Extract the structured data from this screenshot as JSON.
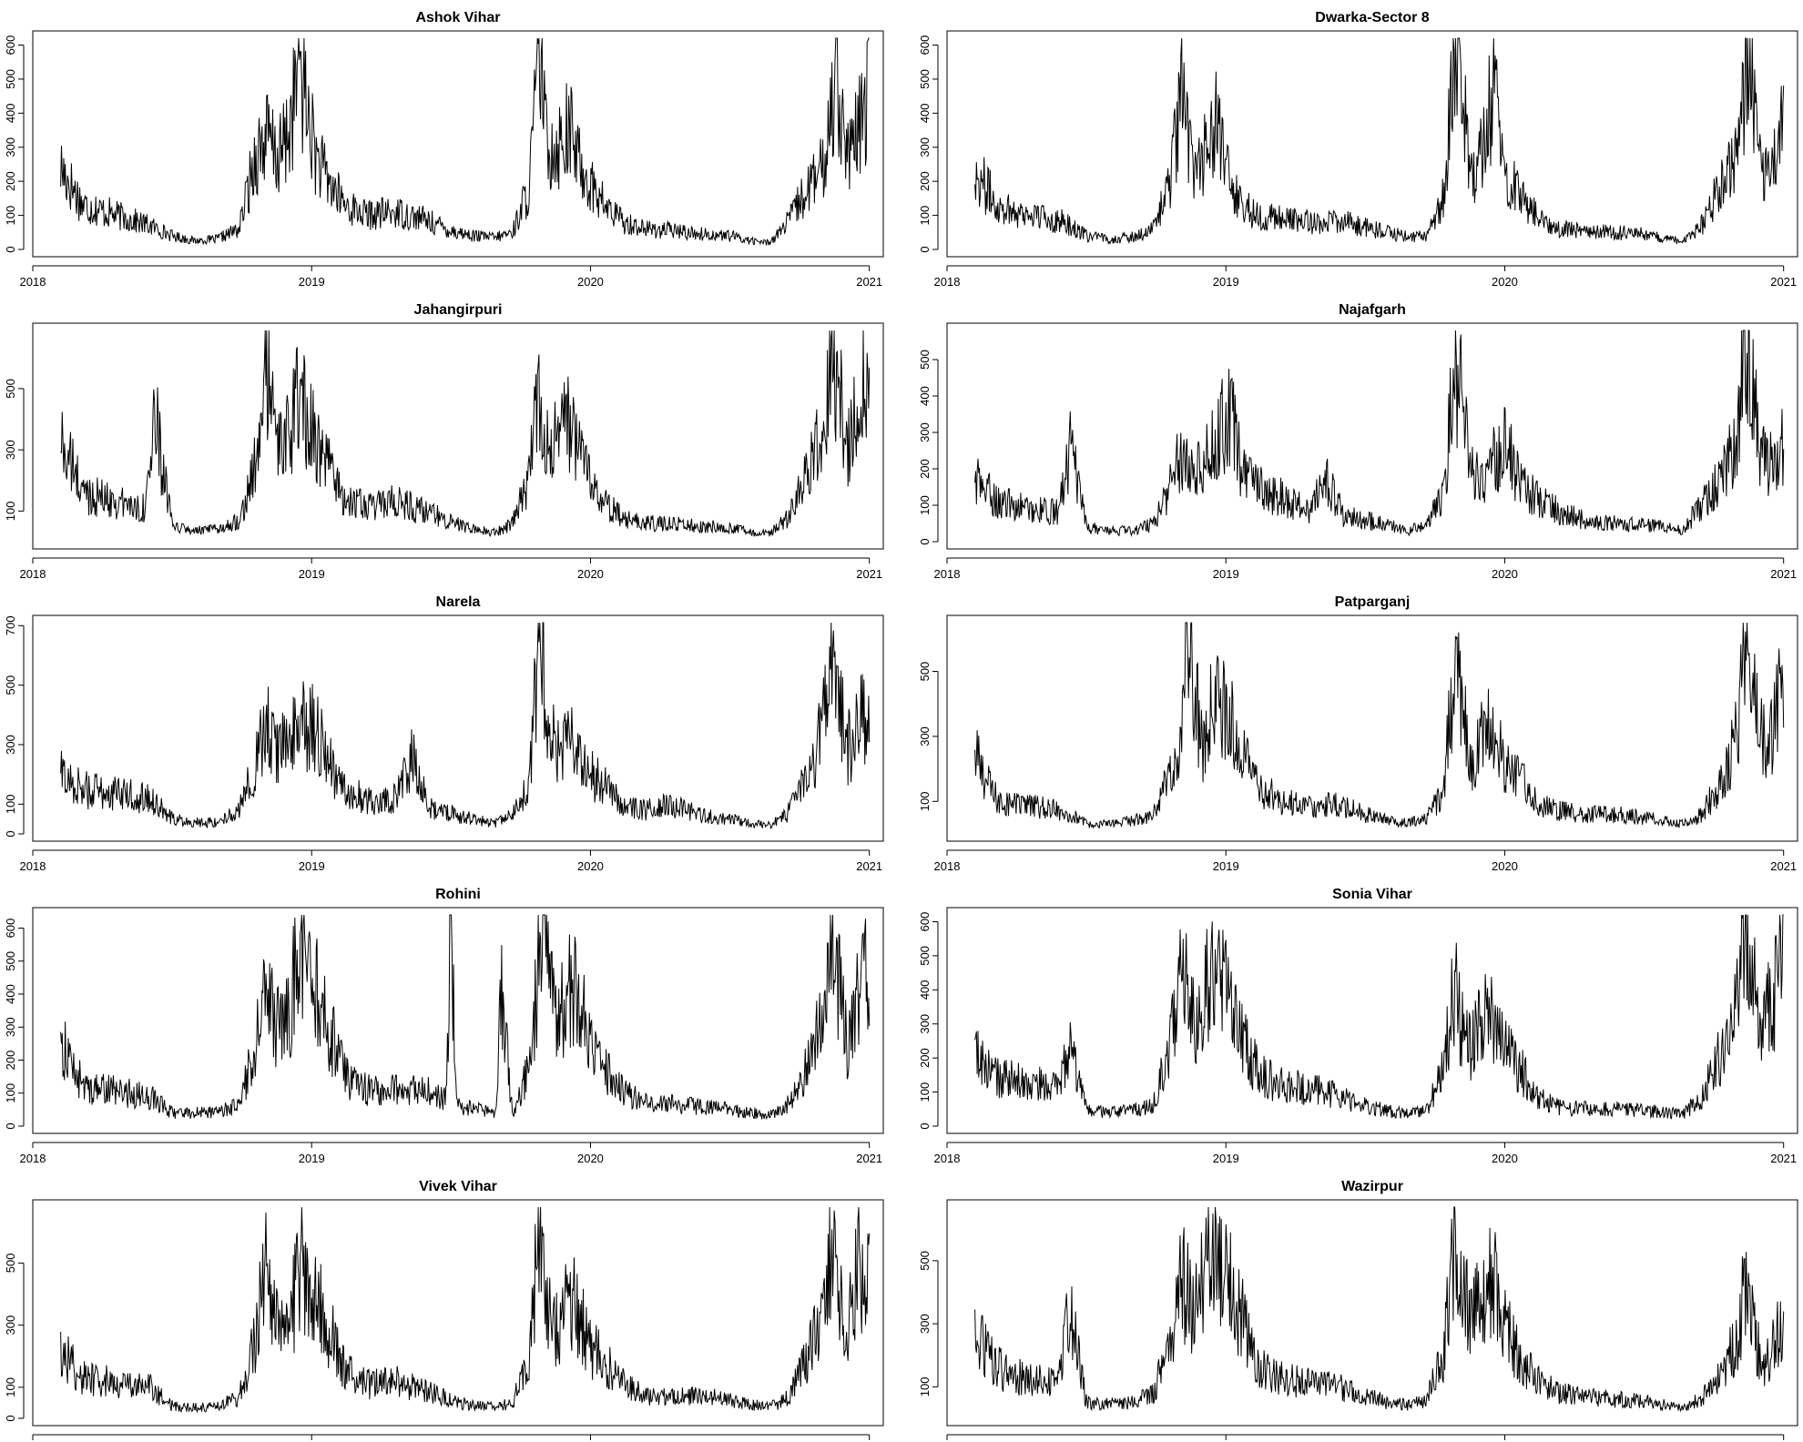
{
  "figure": {
    "x_tick_labels": [
      "2018",
      "2019",
      "2020",
      "2021"
    ],
    "line_color": "#000000"
  },
  "chart_data": [
    {
      "type": "line",
      "title": "Ashok Vihar",
      "xlim": [
        2018.0,
        2021.05
      ],
      "ylim": [
        0,
        620
      ],
      "y_ticks": [
        0,
        100,
        200,
        300,
        400,
        500,
        600
      ],
      "x": [
        2018.1,
        2018.18,
        2018.26,
        2018.34,
        2018.42,
        2018.5,
        2018.58,
        2018.66,
        2018.74,
        2018.8,
        2018.84,
        2018.88,
        2018.92,
        2018.96,
        2018.98,
        2019.02,
        2019.06,
        2019.12,
        2019.2,
        2019.3,
        2019.4,
        2019.5,
        2019.58,
        2019.66,
        2019.72,
        2019.78,
        2019.82,
        2019.84,
        2019.88,
        2019.92,
        2019.96,
        2020.0,
        2020.06,
        2020.12,
        2020.2,
        2020.3,
        2020.4,
        2020.5,
        2020.58,
        2020.64,
        2020.7,
        2020.78,
        2020.84,
        2020.88,
        2020.92,
        2020.96,
        2021.0
      ],
      "y": [
        240,
        130,
        110,
        90,
        70,
        40,
        25,
        30,
        60,
        280,
        330,
        260,
        350,
        560,
        420,
        260,
        200,
        130,
        100,
        110,
        90,
        55,
        40,
        35,
        50,
        180,
        610,
        320,
        300,
        360,
        260,
        190,
        120,
        80,
        60,
        55,
        45,
        40,
        25,
        20,
        70,
        180,
        240,
        570,
        250,
        340,
        480
      ]
    },
    {
      "type": "line",
      "title": "Dwarka-Sector 8",
      "xlim": [
        2018.0,
        2021.05
      ],
      "ylim": [
        0,
        620
      ],
      "y_ticks": [
        0,
        100,
        200,
        300,
        400,
        500,
        600
      ],
      "x": [
        2018.1,
        2018.18,
        2018.26,
        2018.34,
        2018.42,
        2018.5,
        2018.58,
        2018.66,
        2018.74,
        2018.8,
        2018.84,
        2018.88,
        2018.92,
        2018.96,
        2018.98,
        2019.02,
        2019.06,
        2019.12,
        2019.2,
        2019.3,
        2019.4,
        2019.5,
        2019.58,
        2019.66,
        2019.72,
        2019.78,
        2019.82,
        2019.84,
        2019.88,
        2019.92,
        2019.96,
        2020.0,
        2020.06,
        2020.12,
        2020.2,
        2020.3,
        2020.4,
        2020.5,
        2020.58,
        2020.64,
        2020.7,
        2020.78,
        2020.84,
        2020.88,
        2020.92,
        2020.96,
        2021.0
      ],
      "y": [
        230,
        130,
        110,
        95,
        80,
        40,
        30,
        35,
        60,
        200,
        440,
        250,
        280,
        380,
        300,
        180,
        130,
        100,
        90,
        80,
        85,
        65,
        50,
        35,
        40,
        150,
        550,
        560,
        210,
        300,
        470,
        220,
        160,
        90,
        60,
        55,
        50,
        45,
        30,
        25,
        60,
        200,
        300,
        600,
        220,
        300,
        400
      ]
    },
    {
      "type": "line",
      "title": "Jahangirpuri",
      "xlim": [
        2018.0,
        2021.05
      ],
      "ylim": [
        0,
        690
      ],
      "y_ticks": [
        100,
        300,
        500
      ],
      "x": [
        2018.1,
        2018.18,
        2018.26,
        2018.34,
        2018.4,
        2018.44,
        2018.5,
        2018.58,
        2018.66,
        2018.74,
        2018.8,
        2018.84,
        2018.88,
        2018.92,
        2018.96,
        2018.98,
        2019.02,
        2019.06,
        2019.12,
        2019.2,
        2019.3,
        2019.4,
        2019.5,
        2019.58,
        2019.66,
        2019.72,
        2019.78,
        2019.82,
        2019.84,
        2019.88,
        2019.92,
        2019.96,
        2020.0,
        2020.06,
        2020.12,
        2020.2,
        2020.3,
        2020.4,
        2020.5,
        2020.58,
        2020.64,
        2020.7,
        2020.78,
        2020.84,
        2020.86,
        2020.92,
        2020.96,
        2021.0
      ],
      "y": [
        330,
        160,
        140,
        120,
        110,
        390,
        50,
        35,
        40,
        70,
        250,
        560,
        300,
        350,
        500,
        420,
        300,
        240,
        140,
        110,
        130,
        100,
        70,
        40,
        30,
        60,
        200,
        540,
        330,
        330,
        380,
        280,
        200,
        120,
        80,
        60,
        60,
        50,
        45,
        30,
        25,
        70,
        220,
        390,
        660,
        310,
        490,
        530
      ]
    },
    {
      "type": "line",
      "title": "Najafgarh",
      "xlim": [
        2018.0,
        2021.05
      ],
      "ylim": [
        0,
        580
      ],
      "y_ticks": [
        0,
        100,
        200,
        300,
        400,
        500
      ],
      "x": [
        2018.1,
        2018.18,
        2018.26,
        2018.34,
        2018.4,
        2018.44,
        2018.5,
        2018.58,
        2018.66,
        2018.74,
        2018.8,
        2018.84,
        2018.88,
        2018.92,
        2018.96,
        2019.02,
        2019.06,
        2019.12,
        2019.2,
        2019.3,
        2019.36,
        2019.42,
        2019.5,
        2019.58,
        2019.66,
        2019.72,
        2019.78,
        2019.82,
        2019.84,
        2019.88,
        2019.92,
        2019.96,
        2020.0,
        2020.06,
        2020.12,
        2020.2,
        2020.3,
        2020.4,
        2020.5,
        2020.58,
        2020.64,
        2020.7,
        2020.78,
        2020.84,
        2020.86,
        2020.92,
        2020.96,
        2021.0
      ],
      "y": [
        170,
        110,
        95,
        85,
        80,
        260,
        40,
        30,
        30,
        50,
        150,
        250,
        200,
        230,
        280,
        350,
        180,
        150,
        120,
        90,
        180,
        70,
        60,
        45,
        30,
        50,
        130,
        460,
        460,
        200,
        160,
        220,
        280,
        150,
        120,
        80,
        55,
        50,
        45,
        40,
        30,
        100,
        180,
        300,
        570,
        230,
        210,
        270
      ]
    },
    {
      "type": "line",
      "title": "Narela",
      "xlim": [
        2018.0,
        2021.05
      ],
      "ylim": [
        0,
        710
      ],
      "y_ticks": [
        0,
        100,
        300,
        500,
        700
      ],
      "x": [
        2018.1,
        2018.18,
        2018.26,
        2018.34,
        2018.42,
        2018.5,
        2018.58,
        2018.66,
        2018.74,
        2018.8,
        2018.84,
        2018.88,
        2018.92,
        2018.96,
        2019.02,
        2019.06,
        2019.12,
        2019.2,
        2019.3,
        2019.36,
        2019.42,
        2019.5,
        2019.58,
        2019.66,
        2019.72,
        2019.78,
        2019.82,
        2019.84,
        2019.88,
        2019.92,
        2019.96,
        2020.0,
        2020.06,
        2020.12,
        2020.2,
        2020.3,
        2020.4,
        2020.5,
        2020.58,
        2020.64,
        2020.7,
        2020.78,
        2020.84,
        2020.86,
        2020.92,
        2020.96,
        2021.0
      ],
      "y": [
        200,
        150,
        140,
        130,
        120,
        50,
        40,
        40,
        80,
        230,
        380,
        280,
        300,
        370,
        340,
        240,
        150,
        110,
        120,
        250,
        90,
        70,
        50,
        35,
        60,
        170,
        680,
        400,
        260,
        330,
        230,
        200,
        150,
        90,
        80,
        100,
        60,
        50,
        35,
        30,
        60,
        200,
        380,
        600,
        280,
        370,
        380
      ]
    },
    {
      "type": "line",
      "title": "Patparganj",
      "xlim": [
        2018.0,
        2021.05
      ],
      "ylim": [
        0,
        650
      ],
      "y_ticks": [
        100,
        300,
        500
      ],
      "x": [
        2018.1,
        2018.18,
        2018.26,
        2018.34,
        2018.42,
        2018.5,
        2018.58,
        2018.66,
        2018.74,
        2018.8,
        2018.84,
        2018.86,
        2018.92,
        2018.96,
        2019.0,
        2019.06,
        2019.12,
        2019.2,
        2019.3,
        2019.4,
        2019.5,
        2019.58,
        2019.66,
        2019.72,
        2019.78,
        2019.82,
        2019.84,
        2019.88,
        2019.92,
        2019.96,
        2020.0,
        2020.06,
        2020.12,
        2020.2,
        2020.3,
        2020.4,
        2020.5,
        2020.58,
        2020.64,
        2020.7,
        2020.78,
        2020.84,
        2020.86,
        2020.92,
        2020.96,
        2021.0
      ],
      "y": [
        240,
        100,
        90,
        80,
        70,
        30,
        30,
        40,
        60,
        180,
        300,
        610,
        250,
        440,
        370,
        250,
        140,
        100,
        90,
        90,
        60,
        40,
        35,
        50,
        130,
        500,
        420,
        200,
        300,
        360,
        200,
        160,
        90,
        70,
        60,
        60,
        50,
        40,
        30,
        55,
        160,
        320,
        640,
        300,
        320,
        480
      ]
    },
    {
      "type": "line",
      "title": "Rohini",
      "xlim": [
        2018.0,
        2021.05
      ],
      "ylim": [
        0,
        640
      ],
      "y_ticks": [
        0,
        100,
        200,
        300,
        400,
        500,
        600
      ],
      "x": [
        2018.1,
        2018.18,
        2018.26,
        2018.34,
        2018.42,
        2018.5,
        2018.58,
        2018.66,
        2018.74,
        2018.8,
        2018.84,
        2018.88,
        2018.92,
        2018.96,
        2019.02,
        2019.06,
        2019.12,
        2019.2,
        2019.3,
        2019.4,
        2019.48,
        2019.5,
        2019.52,
        2019.6,
        2019.66,
        2019.68,
        2019.72,
        2019.78,
        2019.82,
        2019.84,
        2019.88,
        2019.92,
        2019.96,
        2020.0,
        2020.06,
        2020.12,
        2020.2,
        2020.3,
        2020.4,
        2020.5,
        2020.58,
        2020.64,
        2020.7,
        2020.78,
        2020.84,
        2020.86,
        2020.92,
        2020.96,
        2021.0
      ],
      "y": [
        250,
        120,
        110,
        100,
        90,
        40,
        40,
        45,
        60,
        250,
        400,
        300,
        360,
        540,
        400,
        300,
        150,
        110,
        110,
        110,
        80,
        600,
        60,
        50,
        40,
        400,
        40,
        180,
        540,
        530,
        300,
        400,
        420,
        230,
        160,
        100,
        70,
        65,
        60,
        50,
        40,
        35,
        60,
        180,
        340,
        620,
        250,
        380,
        550
      ]
    },
    {
      "type": "line",
      "title": "Sonia Vihar",
      "xlim": [
        2018.0,
        2021.05
      ],
      "ylim": [
        0,
        620
      ],
      "y_ticks": [
        0,
        100,
        200,
        300,
        400,
        500,
        600
      ],
      "x": [
        2018.1,
        2018.18,
        2018.26,
        2018.34,
        2018.4,
        2018.44,
        2018.5,
        2018.58,
        2018.66,
        2018.74,
        2018.8,
        2018.84,
        2018.88,
        2018.92,
        2018.96,
        2019.02,
        2019.06,
        2019.12,
        2019.2,
        2019.3,
        2019.4,
        2019.5,
        2019.58,
        2019.66,
        2019.72,
        2019.78,
        2019.82,
        2019.84,
        2019.88,
        2019.92,
        2019.96,
        2020.0,
        2020.06,
        2020.12,
        2020.2,
        2020.3,
        2020.4,
        2020.5,
        2020.58,
        2020.64,
        2020.7,
        2020.78,
        2020.84,
        2020.86,
        2020.92,
        2020.96,
        2021.0
      ],
      "y": [
        210,
        140,
        130,
        120,
        110,
        230,
        45,
        40,
        45,
        60,
        260,
        480,
        300,
        380,
        460,
        390,
        250,
        150,
        120,
        110,
        90,
        60,
        45,
        35,
        50,
        170,
        410,
        300,
        220,
        320,
        310,
        240,
        160,
        90,
        55,
        50,
        50,
        45,
        40,
        35,
        80,
        220,
        360,
        600,
        300,
        370,
        520
      ]
    },
    {
      "type": "line",
      "title": "Vivek Vihar",
      "xlim": [
        2018.0,
        2021.05
      ],
      "ylim": [
        0,
        680
      ],
      "y_ticks": [
        0,
        100,
        300,
        500
      ],
      "x": [
        2018.1,
        2018.18,
        2018.26,
        2018.34,
        2018.42,
        2018.5,
        2018.58,
        2018.66,
        2018.74,
        2018.8,
        2018.84,
        2018.88,
        2018.92,
        2018.96,
        2019.02,
        2019.06,
        2019.12,
        2019.2,
        2019.3,
        2019.4,
        2019.5,
        2019.58,
        2019.66,
        2019.72,
        2019.78,
        2019.82,
        2019.84,
        2019.88,
        2019.92,
        2019.96,
        2020.0,
        2020.06,
        2020.12,
        2020.2,
        2020.3,
        2020.4,
        2020.5,
        2020.58,
        2020.64,
        2020.7,
        2020.78,
        2020.84,
        2020.86,
        2020.92,
        2020.96,
        2021.0
      ],
      "y": [
        220,
        130,
        120,
        110,
        100,
        40,
        35,
        40,
        70,
        250,
        530,
        260,
        300,
        480,
        400,
        290,
        150,
        110,
        120,
        90,
        60,
        40,
        35,
        50,
        180,
        660,
        400,
        280,
        420,
        340,
        230,
        170,
        110,
        70,
        70,
        70,
        60,
        45,
        35,
        60,
        200,
        340,
        520,
        300,
        470,
        500
      ]
    },
    {
      "type": "line",
      "title": "Wazirpur",
      "xlim": [
        2018.0,
        2021.05
      ],
      "ylim": [
        0,
        670
      ],
      "y_ticks": [
        100,
        300,
        500
      ],
      "x": [
        2018.1,
        2018.18,
        2018.26,
        2018.34,
        2018.4,
        2018.44,
        2018.5,
        2018.58,
        2018.66,
        2018.74,
        2018.8,
        2018.84,
        2018.88,
        2018.92,
        2018.96,
        2018.98,
        2019.02,
        2019.06,
        2019.12,
        2019.2,
        2019.3,
        2019.4,
        2019.5,
        2019.58,
        2019.66,
        2019.72,
        2019.78,
        2019.82,
        2019.84,
        2019.88,
        2019.92,
        2019.96,
        2020.0,
        2020.06,
        2020.12,
        2020.2,
        2020.3,
        2020.4,
        2020.5,
        2020.58,
        2020.64,
        2020.7,
        2020.78,
        2020.84,
        2020.86,
        2020.92,
        2020.96,
        2021.0
      ],
      "y": [
        260,
        160,
        130,
        120,
        110,
        350,
        50,
        45,
        50,
        80,
        250,
        440,
        350,
        420,
        640,
        460,
        420,
        320,
        160,
        130,
        110,
        100,
        70,
        50,
        40,
        60,
        200,
        580,
        440,
        300,
        430,
        430,
        290,
        180,
        120,
        80,
        70,
        60,
        55,
        40,
        35,
        60,
        150,
        260,
        420,
        170,
        220,
        320
      ]
    }
  ]
}
